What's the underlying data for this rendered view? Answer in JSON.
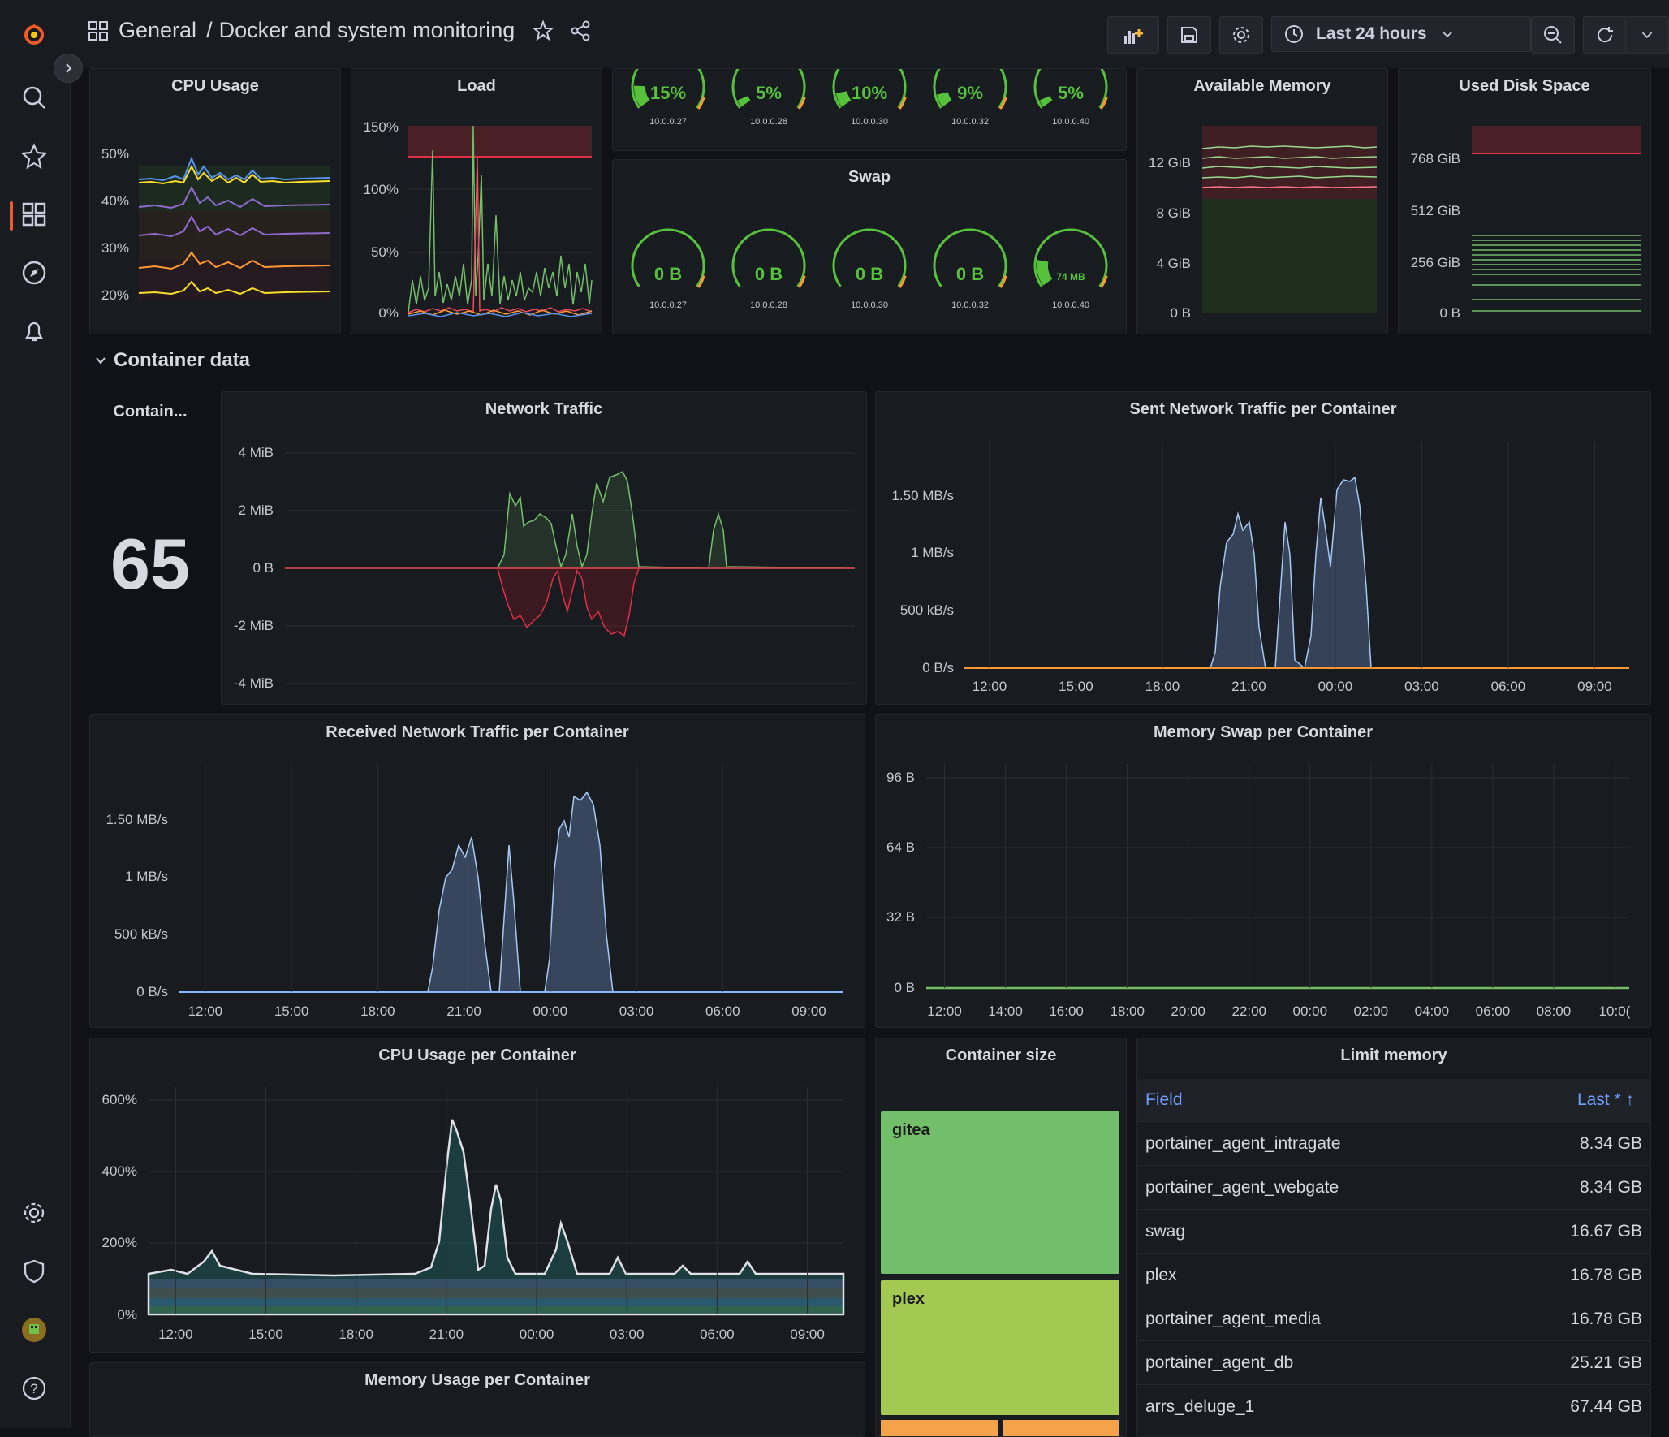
{
  "breadcrumb": {
    "folder": "General",
    "separator": "/",
    "dashboard": "Docker and system monitoring"
  },
  "toolbar": {
    "time_range": "Last 24 hours"
  },
  "colors": {
    "accent": "#f05a28",
    "green": "#56c13b",
    "blue": "#5794f2",
    "red": "#e02f44",
    "bg": "#111217",
    "panel": "#181b1f"
  },
  "icons": [
    "grafana-logo-icon",
    "search-icon",
    "star-icon",
    "dashboards-icon",
    "explore-icon",
    "alerting-icon",
    "settings-icon",
    "shield-icon",
    "avatar",
    "help-icon",
    "grid-icon",
    "share-icon",
    "add-panel-icon",
    "save-icon",
    "gear-icon",
    "clock-icon",
    "zoom-out-icon",
    "refresh-icon",
    "chevron-down-icon",
    "tv-icon"
  ],
  "panels": {
    "cpu_usage": {
      "title": "CPU Usage",
      "yticks": [
        "50%",
        "40%",
        "30%",
        "20%"
      ]
    },
    "load": {
      "title": "Load",
      "yticks": [
        "150%",
        "100%",
        "50%",
        "0%"
      ]
    },
    "cpu_gauges": {
      "items": [
        {
          "value": "15%",
          "host": "10.0.0.27",
          "fill": 0.15
        },
        {
          "value": "5%",
          "host": "10.0.0.28",
          "fill": 0.05
        },
        {
          "value": "10%",
          "host": "10.0.0.30",
          "fill": 0.1
        },
        {
          "value": "9%",
          "host": "10.0.0.32",
          "fill": 0.09
        },
        {
          "value": "5%",
          "host": "10.0.0.40",
          "fill": 0.05
        }
      ]
    },
    "swap": {
      "title": "Swap",
      "items": [
        {
          "value": "0 B",
          "host": "10.0.0.27",
          "fill": 0
        },
        {
          "value": "0 B",
          "host": "10.0.0.28",
          "fill": 0
        },
        {
          "value": "0 B",
          "host": "10.0.0.30",
          "fill": 0
        },
        {
          "value": "0 B",
          "host": "10.0.0.32",
          "fill": 0
        },
        {
          "value": "74 MB",
          "host": "10.0.0.40",
          "fill": 0.18
        }
      ]
    },
    "available_memory": {
      "title": "Available Memory",
      "yticks": [
        "12 GiB",
        "8 GiB",
        "4 GiB",
        "0 B"
      ]
    },
    "used_disk": {
      "title": "Used Disk Space",
      "yticks": [
        "768 GiB",
        "512 GiB",
        "256 GiB",
        "0 B"
      ]
    },
    "section": {
      "title": "Container data"
    },
    "container_count": {
      "title": "Contain...",
      "value": "65"
    },
    "network_traffic": {
      "title": "Network Traffic",
      "yticks": [
        "4 MiB",
        "2 MiB",
        "0 B",
        "-2 MiB",
        "-4 MiB"
      ]
    },
    "sent_traffic": {
      "title": "Sent Network Traffic per Container",
      "yticks": [
        "1.50 MB/s",
        "1 MB/s",
        "500 kB/s",
        "0 B/s"
      ],
      "xticks": [
        "12:00",
        "15:00",
        "18:00",
        "21:00",
        "00:00",
        "03:00",
        "06:00",
        "09:00"
      ]
    },
    "received_traffic": {
      "title": "Received Network Traffic per Container",
      "yticks": [
        "1.50 MB/s",
        "1 MB/s",
        "500 kB/s",
        "0 B/s"
      ],
      "xticks": [
        "12:00",
        "15:00",
        "18:00",
        "21:00",
        "00:00",
        "03:00",
        "06:00",
        "09:00"
      ]
    },
    "memory_swap": {
      "title": "Memory Swap per Container",
      "yticks": [
        "96 B",
        "64 B",
        "32 B",
        "0 B"
      ],
      "xticks": [
        "12:00",
        "14:00",
        "16:00",
        "18:00",
        "20:00",
        "22:00",
        "00:00",
        "02:00",
        "04:00",
        "06:00",
        "08:00",
        "10:0("
      ]
    },
    "cpu_per_container": {
      "title": "CPU Usage per Container",
      "yticks": [
        "600%",
        "400%",
        "200%",
        "0%"
      ],
      "xticks": [
        "12:00",
        "15:00",
        "18:00",
        "21:00",
        "00:00",
        "03:00",
        "06:00",
        "09:00"
      ]
    },
    "container_size": {
      "title": "Container size",
      "items": [
        {
          "label": "gitea"
        },
        {
          "label": "plex"
        }
      ]
    },
    "limit_memory": {
      "title": "Limit memory",
      "col_field": "Field",
      "col_last": "Last * ↑",
      "rows": [
        {
          "field": "portainer_agent_intragate",
          "value": "8.34 GB"
        },
        {
          "field": "portainer_agent_webgate",
          "value": "8.34 GB"
        },
        {
          "field": "swag",
          "value": "16.67 GB"
        },
        {
          "field": "plex",
          "value": "16.78 GB"
        },
        {
          "field": "portainer_agent_media",
          "value": "16.78 GB"
        },
        {
          "field": "portainer_agent_db",
          "value": "25.21 GB"
        },
        {
          "field": "arrs_deluge_1",
          "value": "67.44 GB"
        }
      ]
    },
    "memory_per_container": {
      "title": "Memory Usage per Container"
    }
  }
}
